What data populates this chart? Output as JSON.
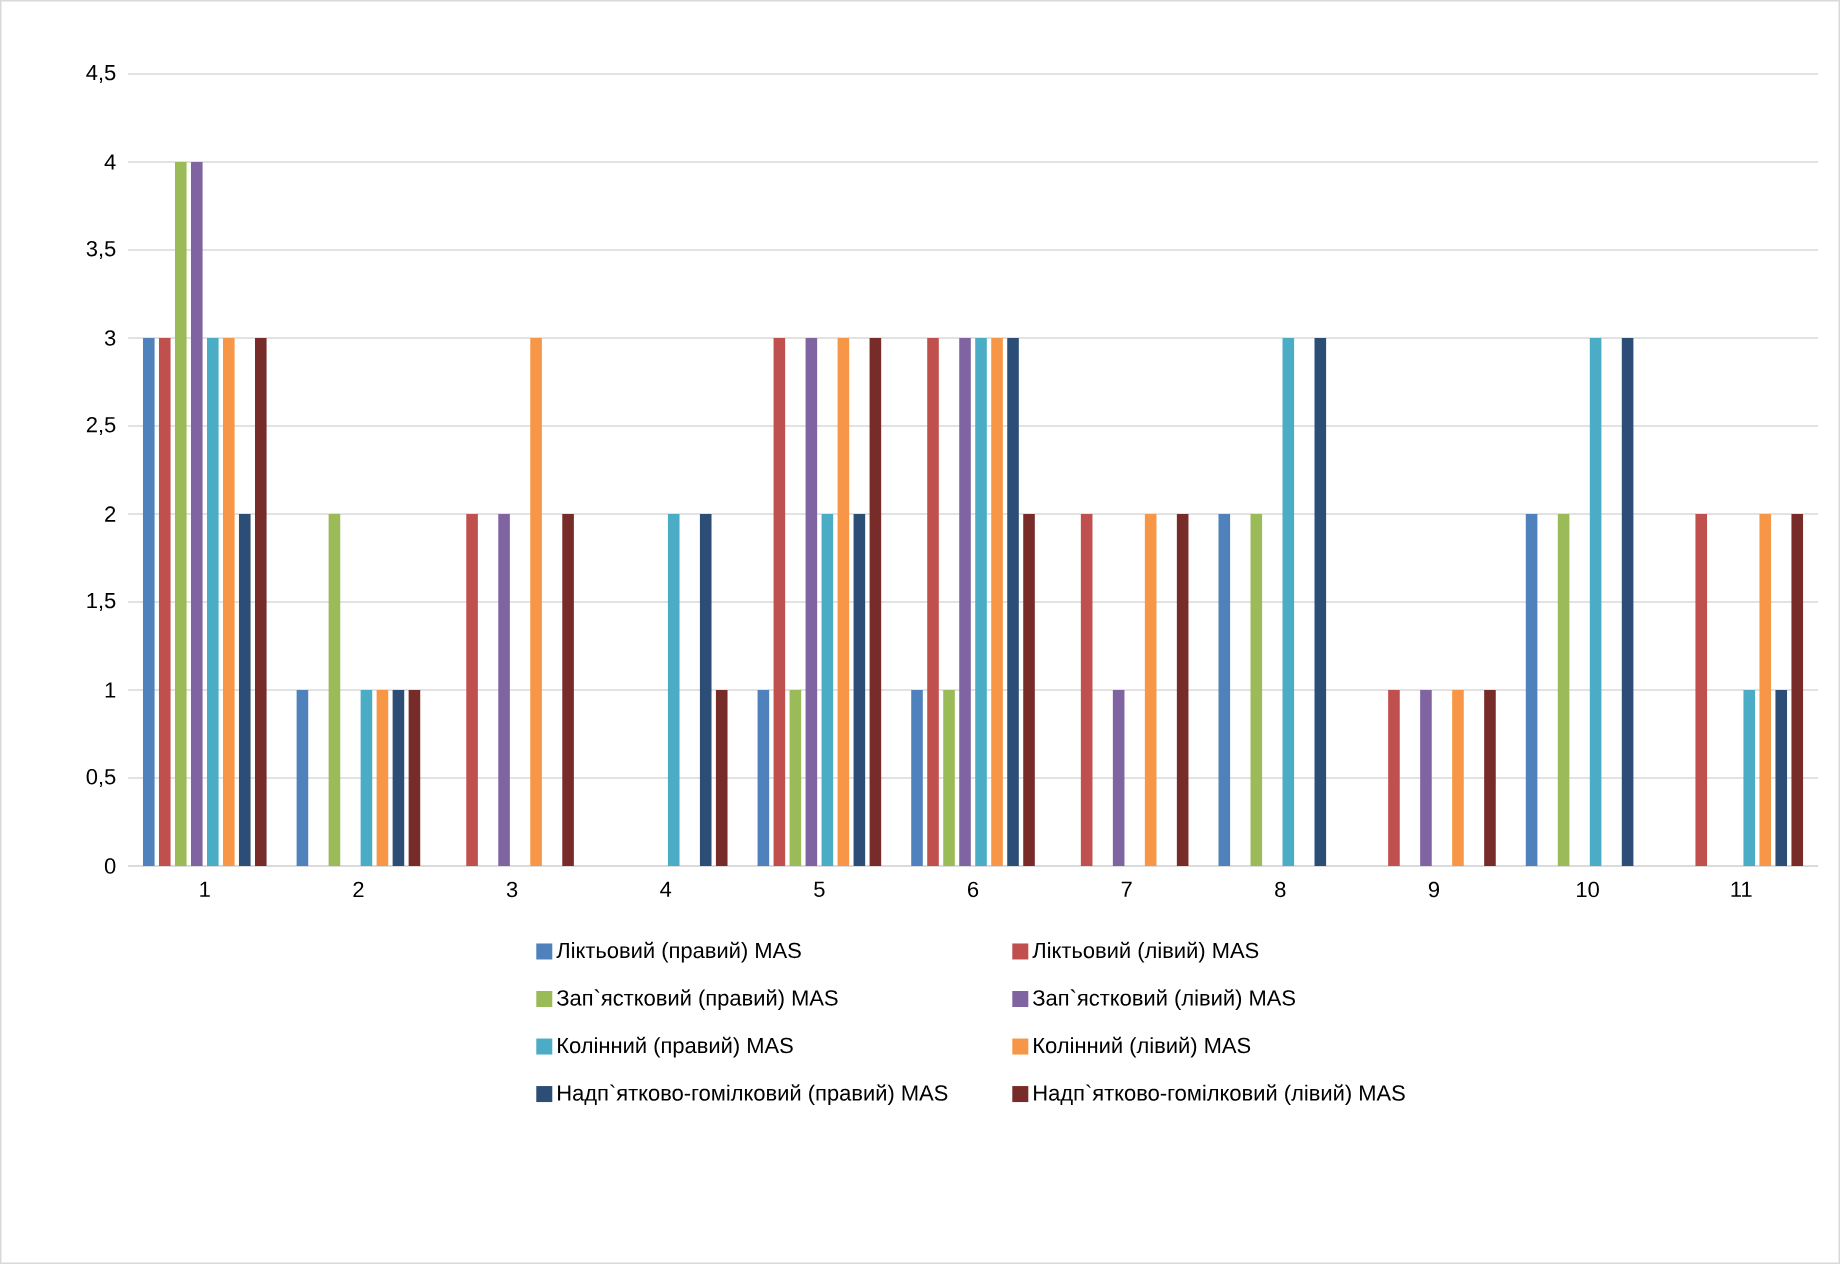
{
  "chart_data": {
    "type": "bar",
    "categories": [
      "1",
      "2",
      "3",
      "4",
      "5",
      "6",
      "7",
      "8",
      "9",
      "10",
      "11"
    ],
    "series": [
      {
        "name": "Ліктьовий (правий) MAS",
        "color": "#4f81bd",
        "values": [
          3,
          1,
          0,
          0,
          1,
          1,
          0,
          2,
          0,
          2,
          0
        ]
      },
      {
        "name": "Ліктьовий (лівий) MAS",
        "color": "#c0504d",
        "values": [
          3,
          0,
          2,
          0,
          3,
          3,
          2,
          0,
          1,
          0,
          2
        ]
      },
      {
        "name": "Зап`ястковий (правий) MAS",
        "color": "#9bbb59",
        "values": [
          4,
          2,
          0,
          0,
          1,
          1,
          0,
          2,
          0,
          2,
          0
        ]
      },
      {
        "name": "Зап`ястковий (лівий) MAS",
        "color": "#8064a2",
        "values": [
          4,
          0,
          2,
          0,
          3,
          3,
          1,
          0,
          1,
          0,
          0
        ]
      },
      {
        "name": "Колінний (правий) MAS",
        "color": "#4bacc6",
        "values": [
          3,
          1,
          0,
          2,
          2,
          3,
          0,
          3,
          0,
          3,
          1
        ]
      },
      {
        "name": "Колінний (лівий) MAS",
        "color": "#f79646",
        "values": [
          3,
          1,
          3,
          0,
          3,
          3,
          2,
          0,
          1,
          0,
          2
        ]
      },
      {
        "name": "Надп`ятково-гомілковий (правий) MAS",
        "color": "#2c4d75",
        "values": [
          2,
          1,
          0,
          2,
          2,
          3,
          0,
          3,
          0,
          3,
          1
        ]
      },
      {
        "name": "Надп`ятково-гомілковий (лівий) MAS",
        "color": "#772c2a",
        "values": [
          3,
          1,
          2,
          1,
          3,
          2,
          2,
          0,
          1,
          0,
          2
        ]
      }
    ],
    "ylim": [
      0,
      4.5
    ],
    "yticks": [
      0,
      {
        "value": 0.5,
        "label": "0,5"
      },
      1,
      {
        "value": 1.5,
        "label": "1,5"
      },
      2,
      {
        "value": 2.5,
        "label": "2,5"
      },
      3,
      {
        "value": 3.5,
        "label": "3,5"
      },
      4,
      {
        "value": 4.5,
        "label": "4,5"
      }
    ],
    "grid": "y",
    "legend": "bottom"
  }
}
